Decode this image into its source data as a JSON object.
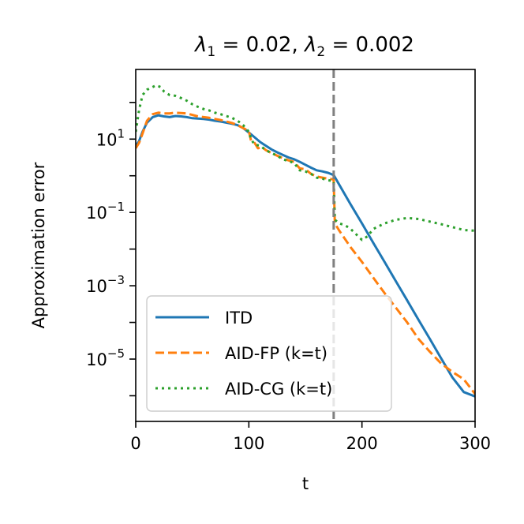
{
  "chart_data": {
    "type": "line",
    "title": "λ1 = 0.02, λ2 = 0.002",
    "title_parts": {
      "lambda1_symbol": "λ",
      "lambda1_subscript": "1",
      "lambda1_value": " = 0.02, ",
      "lambda2_symbol": "λ",
      "lambda2_subscript": "2",
      "lambda2_value": " = 0.002"
    },
    "xlabel": "t",
    "ylabel": "Approximation error",
    "xlim": [
      0,
      300
    ],
    "ylim_log10": [
      -6.7,
      2.9
    ],
    "yscale": "log",
    "xticks": [
      0,
      100,
      200,
      300
    ],
    "xtick_labels": [
      "0",
      "100",
      "200",
      "300"
    ],
    "yticks_log10": [
      1,
      -1,
      -3,
      -5
    ],
    "ytick_labels": [
      {
        "base": "10",
        "exp": "1"
      },
      {
        "base": "10",
        "exp": "−1"
      },
      {
        "base": "10",
        "exp": "−3"
      },
      {
        "base": "10",
        "exp": "−5"
      }
    ],
    "vline": {
      "x": 175,
      "color": "#808080",
      "style": "dashed"
    },
    "legend_position": "lower-left",
    "series": [
      {
        "name": "ITD",
        "color": "#1f77b4",
        "dash": "solid",
        "points": [
          [
            0,
            0.8
          ],
          [
            3,
            0.95
          ],
          [
            6,
            1.2
          ],
          [
            10,
            1.45
          ],
          [
            15,
            1.6
          ],
          [
            20,
            1.65
          ],
          [
            25,
            1.62
          ],
          [
            30,
            1.6
          ],
          [
            35,
            1.63
          ],
          [
            40,
            1.62
          ],
          [
            45,
            1.6
          ],
          [
            50,
            1.57
          ],
          [
            55,
            1.56
          ],
          [
            60,
            1.55
          ],
          [
            65,
            1.53
          ],
          [
            70,
            1.5
          ],
          [
            75,
            1.48
          ],
          [
            80,
            1.45
          ],
          [
            85,
            1.42
          ],
          [
            90,
            1.38
          ],
          [
            95,
            1.3
          ],
          [
            100,
            1.18
          ],
          [
            105,
            1.05
          ],
          [
            110,
            0.92
          ],
          [
            115,
            0.82
          ],
          [
            120,
            0.72
          ],
          [
            125,
            0.64
          ],
          [
            130,
            0.57
          ],
          [
            135,
            0.5
          ],
          [
            140,
            0.45
          ],
          [
            145,
            0.38
          ],
          [
            150,
            0.3
          ],
          [
            155,
            0.22
          ],
          [
            160,
            0.15
          ],
          [
            165,
            0.12
          ],
          [
            170,
            0.08
          ],
          [
            175,
            0.02
          ],
          [
            180,
            -0.25
          ],
          [
            190,
            -0.78
          ],
          [
            200,
            -1.3
          ],
          [
            210,
            -1.83
          ],
          [
            220,
            -2.35
          ],
          [
            230,
            -2.88
          ],
          [
            240,
            -3.4
          ],
          [
            250,
            -3.93
          ],
          [
            260,
            -4.45
          ],
          [
            270,
            -4.98
          ],
          [
            280,
            -5.5
          ],
          [
            290,
            -5.9
          ],
          [
            300,
            -6.02
          ]
        ]
      },
      {
        "name": "AID-FP (k=t)",
        "color": "#ff7f0e",
        "dash": "dashed",
        "points": [
          [
            0,
            0.75
          ],
          [
            3,
            0.9
          ],
          [
            6,
            1.15
          ],
          [
            10,
            1.5
          ],
          [
            15,
            1.68
          ],
          [
            20,
            1.72
          ],
          [
            25,
            1.7
          ],
          [
            30,
            1.7
          ],
          [
            35,
            1.72
          ],
          [
            40,
            1.71
          ],
          [
            45,
            1.7
          ],
          [
            50,
            1.66
          ],
          [
            55,
            1.62
          ],
          [
            60,
            1.6
          ],
          [
            65,
            1.58
          ],
          [
            70,
            1.55
          ],
          [
            75,
            1.52
          ],
          [
            80,
            1.48
          ],
          [
            85,
            1.44
          ],
          [
            90,
            1.38
          ],
          [
            95,
            1.3
          ],
          [
            100,
            1.22
          ],
          [
            102,
            0.95
          ],
          [
            105,
            0.9
          ],
          [
            108,
            0.75
          ],
          [
            112,
            0.78
          ],
          [
            115,
            0.7
          ],
          [
            120,
            0.62
          ],
          [
            125,
            0.55
          ],
          [
            130,
            0.48
          ],
          [
            135,
            0.42
          ],
          [
            140,
            0.38
          ],
          [
            145,
            0.2
          ],
          [
            150,
            0.18
          ],
          [
            155,
            0.05
          ],
          [
            160,
            -0.02
          ],
          [
            165,
            -0.05
          ],
          [
            170,
            -0.08
          ],
          [
            175,
            -0.1
          ],
          [
            176,
            -1.3
          ],
          [
            180,
            -1.5
          ],
          [
            190,
            -1.95
          ],
          [
            200,
            -2.35
          ],
          [
            210,
            -2.78
          ],
          [
            220,
            -3.2
          ],
          [
            230,
            -3.6
          ],
          [
            240,
            -4.0
          ],
          [
            250,
            -4.45
          ],
          [
            260,
            -4.8
          ],
          [
            270,
            -5.12
          ],
          [
            280,
            -5.35
          ],
          [
            290,
            -5.55
          ],
          [
            300,
            -5.95
          ]
        ]
      },
      {
        "name": "AID-CG (k=t)",
        "color": "#2ca02c",
        "dash": "dotted",
        "points": [
          [
            0,
            1.2
          ],
          [
            3,
            1.8
          ],
          [
            6,
            2.2
          ],
          [
            10,
            2.35
          ],
          [
            15,
            2.42
          ],
          [
            18,
            2.47
          ],
          [
            22,
            2.42
          ],
          [
            25,
            2.3
          ],
          [
            30,
            2.2
          ],
          [
            35,
            2.18
          ],
          [
            40,
            2.12
          ],
          [
            45,
            2.05
          ],
          [
            50,
            1.95
          ],
          [
            55,
            1.88
          ],
          [
            60,
            1.82
          ],
          [
            65,
            1.78
          ],
          [
            70,
            1.72
          ],
          [
            75,
            1.68
          ],
          [
            80,
            1.63
          ],
          [
            85,
            1.58
          ],
          [
            90,
            1.5
          ],
          [
            95,
            1.38
          ],
          [
            100,
            1.2
          ],
          [
            102,
            1.0
          ],
          [
            105,
            0.85
          ],
          [
            110,
            0.82
          ],
          [
            115,
            0.7
          ],
          [
            120,
            0.62
          ],
          [
            125,
            0.55
          ],
          [
            130,
            0.45
          ],
          [
            135,
            0.4
          ],
          [
            140,
            0.35
          ],
          [
            145,
            0.15
          ],
          [
            150,
            0.12
          ],
          [
            155,
            0.05
          ],
          [
            160,
            -0.05
          ],
          [
            165,
            -0.08
          ],
          [
            170,
            -0.12
          ],
          [
            175,
            -0.15
          ],
          [
            176,
            -1.2
          ],
          [
            180,
            -1.3
          ],
          [
            185,
            -1.35
          ],
          [
            190,
            -1.45
          ],
          [
            195,
            -1.6
          ],
          [
            200,
            -1.75
          ],
          [
            205,
            -1.65
          ],
          [
            210,
            -1.45
          ],
          [
            220,
            -1.3
          ],
          [
            230,
            -1.2
          ],
          [
            240,
            -1.15
          ],
          [
            250,
            -1.18
          ],
          [
            260,
            -1.25
          ],
          [
            270,
            -1.32
          ],
          [
            280,
            -1.4
          ],
          [
            290,
            -1.48
          ],
          [
            300,
            -1.5
          ]
        ]
      }
    ]
  }
}
